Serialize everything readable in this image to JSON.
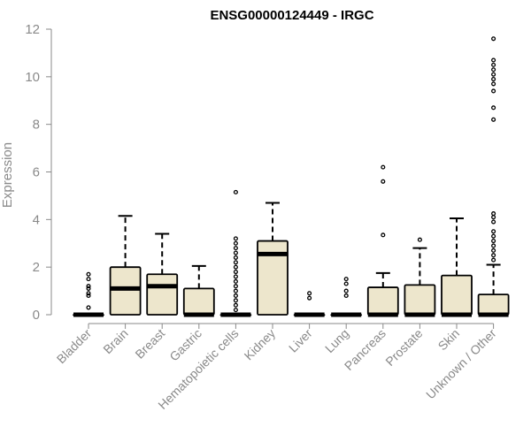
{
  "chart_data": {
    "type": "boxplot",
    "title": "ENSG00000124449 - IRGC",
    "ylabel": "Expression",
    "xlabel": "",
    "ylim": [
      0,
      12
    ],
    "yticks": [
      0,
      2,
      4,
      6,
      8,
      10,
      12
    ],
    "grid": false,
    "legend": "none",
    "box_fill": "#ede6cc",
    "box_stroke": "#000000",
    "categories": [
      "Bladder",
      "Brain",
      "Breast",
      "Gastric",
      "Hematopoietic cells",
      "Kidney",
      "Liver",
      "Lung",
      "Pancreas",
      "Prostate",
      "Skin",
      "Unknown / Other"
    ],
    "boxes": [
      {
        "q1": 0,
        "median": 0,
        "q3": 0,
        "whisker_low": 0,
        "whisker_high": 0,
        "outliers": [
          0.3,
          0.8,
          0.9,
          1.1,
          1.2,
          1.5,
          1.7
        ]
      },
      {
        "q1": 0,
        "median": 1.1,
        "q3": 2.0,
        "whisker_low": 0,
        "whisker_high": 4.15,
        "outliers": []
      },
      {
        "q1": 0,
        "median": 1.2,
        "q3": 1.7,
        "whisker_low": 0,
        "whisker_high": 3.4,
        "outliers": []
      },
      {
        "q1": 0,
        "median": 0,
        "q3": 1.1,
        "whisker_low": 0,
        "whisker_high": 2.05,
        "outliers": []
      },
      {
        "q1": 0,
        "median": 0,
        "q3": 0,
        "whisker_low": 0,
        "whisker_high": 0,
        "outliers": [
          0.2,
          0.4,
          0.6,
          0.8,
          1.0,
          1.2,
          1.4,
          1.6,
          1.8,
          2.0,
          2.2,
          2.4,
          2.6,
          2.8,
          3.0,
          3.2,
          5.15
        ]
      },
      {
        "q1": 0,
        "median": 2.55,
        "q3": 3.1,
        "whisker_low": 0,
        "whisker_high": 4.7,
        "outliers": []
      },
      {
        "q1": 0,
        "median": 0,
        "q3": 0,
        "whisker_low": 0,
        "whisker_high": 0,
        "outliers": [
          0.7,
          0.9
        ]
      },
      {
        "q1": 0,
        "median": 0,
        "q3": 0,
        "whisker_low": 0,
        "whisker_high": 0,
        "outliers": [
          0.8,
          1.0,
          1.3,
          1.5
        ]
      },
      {
        "q1": 0,
        "median": 0,
        "q3": 1.15,
        "whisker_low": 0,
        "whisker_high": 1.75,
        "outliers": [
          3.35,
          5.6,
          6.2
        ]
      },
      {
        "q1": 0,
        "median": 0,
        "q3": 1.25,
        "whisker_low": 0,
        "whisker_high": 2.8,
        "outliers": [
          3.15
        ]
      },
      {
        "q1": 0,
        "median": 0,
        "q3": 1.65,
        "whisker_low": 0,
        "whisker_high": 4.05,
        "outliers": []
      },
      {
        "q1": 0,
        "median": 0,
        "q3": 0.85,
        "whisker_low": 0,
        "whisker_high": 2.1,
        "outliers": [
          2.3,
          2.5,
          2.7,
          2.9,
          3.1,
          3.3,
          3.5,
          3.9,
          4.1,
          4.25,
          8.2,
          8.7,
          9.4,
          9.7,
          9.9,
          10.1,
          10.3,
          10.5,
          10.7,
          11.6
        ]
      }
    ]
  }
}
